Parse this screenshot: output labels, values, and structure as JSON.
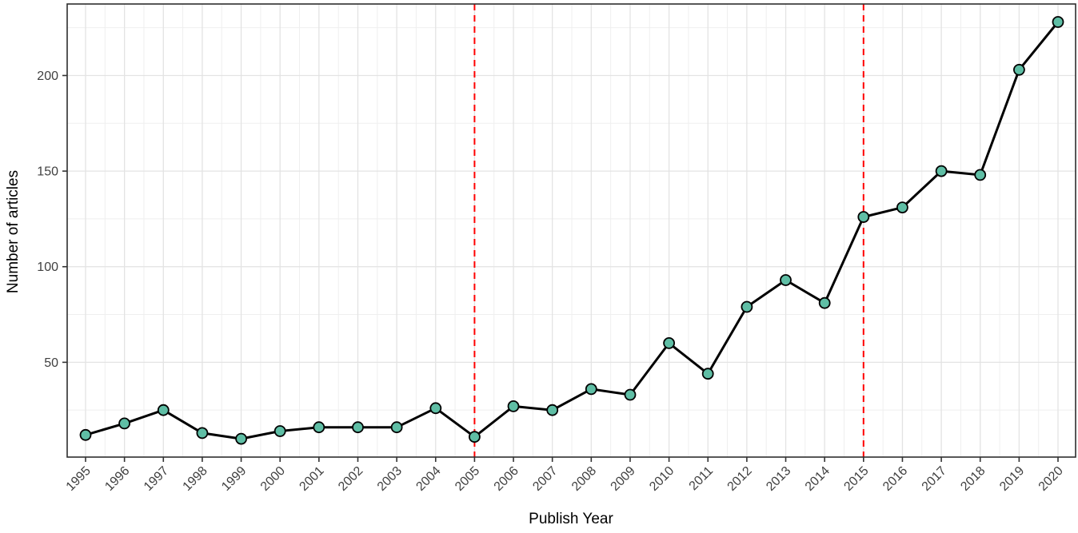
{
  "chart_data": {
    "type": "line",
    "title": "",
    "xlabel": "Publish Year",
    "ylabel": "Number of articles",
    "x": [
      1995,
      1996,
      1997,
      1998,
      1999,
      2000,
      2001,
      2002,
      2003,
      2004,
      2005,
      2006,
      2007,
      2008,
      2009,
      2010,
      2011,
      2012,
      2013,
      2014,
      2015,
      2016,
      2017,
      2018,
      2019,
      2020
    ],
    "series": [
      {
        "name": "Number of articles",
        "values": [
          12,
          18,
          25,
          13,
          10,
          14,
          16,
          16,
          16,
          26,
          11,
          27,
          25,
          36,
          33,
          60,
          44,
          79,
          93,
          81,
          126,
          131,
          150,
          148,
          203,
          228
        ]
      }
    ],
    "yticks": [
      50,
      100,
      150,
      200
    ],
    "y_minor_ticks": [
      25,
      75,
      125,
      175,
      225
    ],
    "ylim": [
      0,
      237
    ],
    "xlim": [
      1994.5,
      2020.6
    ],
    "grid": "on",
    "legend": "none",
    "reference_lines": [
      {
        "axis": "x",
        "value": 2005,
        "style": "dashed",
        "color": "#FF0000"
      },
      {
        "axis": "x",
        "value": 2015,
        "style": "dashed",
        "color": "#FF0000"
      }
    ],
    "colors": {
      "point_fill": "#5FBEA5",
      "point_stroke": "#000000",
      "line": "#000000",
      "grid_major": "#e3e3e3",
      "grid_minor": "#efefef",
      "panel_border": "#2e2e2e",
      "tick_mark": "#333333",
      "tick_label": "#404040",
      "axis_title": "#000000",
      "background": "#ffffff"
    }
  }
}
